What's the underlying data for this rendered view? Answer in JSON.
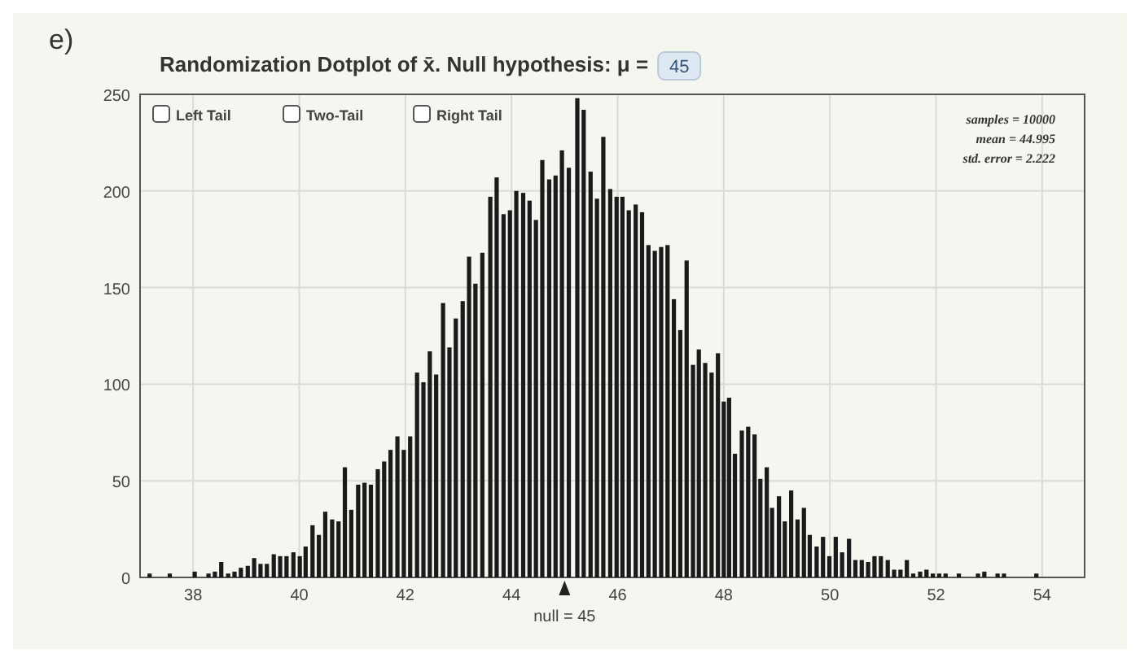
{
  "chart_data": {
    "type": "bar",
    "title": "Randomization Dotplot of x̄. Null hypothesis: μ =",
    "x": [
      37.18,
      37.56,
      38.03,
      38.29,
      38.41,
      38.53,
      38.66,
      38.78,
      38.9,
      39.03,
      39.15,
      39.27,
      39.39,
      39.52,
      39.64,
      39.76,
      39.89,
      40.01,
      40.12,
      40.25,
      40.37,
      40.49,
      40.62,
      40.74,
      40.86,
      40.98,
      41.11,
      41.23,
      41.35,
      41.48,
      41.6,
      41.72,
      41.85,
      41.97,
      42.09,
      42.22,
      42.34,
      42.46,
      42.58,
      42.71,
      42.83,
      42.95,
      43.08,
      43.2,
      43.32,
      43.45,
      43.6,
      43.72,
      43.85,
      43.97,
      44.09,
      44.22,
      44.34,
      44.46,
      44.58,
      44.71,
      44.83,
      44.95,
      45.08,
      45.24,
      45.36,
      45.49,
      45.61,
      45.73,
      45.86,
      45.98,
      46.09,
      46.21,
      46.34,
      46.46,
      46.58,
      46.7,
      46.82,
      46.94,
      47.06,
      47.18,
      47.3,
      47.42,
      47.53,
      47.65,
      47.77,
      47.89,
      48,
      48.1,
      48.21,
      48.34,
      48.46,
      48.58,
      48.69,
      48.81,
      48.91,
      49.04,
      49.15,
      49.27,
      49.39,
      49.51,
      49.62,
      49.75,
      49.87,
      49.99,
      50.11,
      50.23,
      50.36,
      50.48,
      50.6,
      50.72,
      50.84,
      50.96,
      51.09,
      51.21,
      51.33,
      51.45,
      51.57,
      51.7,
      51.82,
      51.94,
      52.06,
      52.18,
      52.43,
      52.79,
      52.91,
      53.16,
      53.28,
      53.89
    ],
    "values": [
      2,
      2,
      3,
      2,
      3,
      8,
      2,
      3,
      5,
      6,
      10,
      7,
      7,
      12,
      11,
      11,
      13,
      11,
      16,
      27,
      22,
      34,
      30,
      29,
      57,
      35,
      48,
      49,
      48,
      56,
      60,
      66,
      73,
      66,
      73,
      106,
      101,
      117,
      105,
      142,
      119,
      134,
      143,
      166,
      152,
      168,
      197,
      207,
      188,
      190,
      200,
      199,
      195,
      185,
      216,
      206,
      208,
      221,
      212,
      248,
      242,
      210,
      196,
      228,
      201,
      197,
      197,
      190,
      193,
      189,
      172,
      169,
      171,
      172,
      144,
      128,
      164,
      110,
      118,
      111,
      106,
      116,
      91,
      93,
      64,
      76,
      78,
      74,
      51,
      57,
      36,
      42,
      29,
      45,
      30,
      36,
      22,
      16,
      21,
      11,
      21,
      13,
      20,
      9,
      9,
      8,
      11,
      11,
      9,
      4,
      4,
      9,
      2,
      3,
      4,
      2,
      2,
      2,
      2,
      2,
      3,
      2,
      2,
      2
    ],
    "color": "#1a1a1a",
    "xlim": [
      37,
      54.8
    ],
    "xticks": [
      38,
      40,
      42,
      44,
      46,
      48,
      50,
      52,
      54
    ],
    "ylim": [
      0,
      250
    ],
    "yticks": [
      0,
      50,
      100,
      150,
      200,
      250
    ],
    "grid": true,
    "annotations": [
      "e)",
      "45",
      "Left Tail",
      "Two-Tail",
      "Right Tail",
      "samples = 10000",
      "mean = 44.995",
      "std. error = 2.222",
      {
        "text": "null = 45",
        "x": 45,
        "y": 0
      }
    ]
  }
}
